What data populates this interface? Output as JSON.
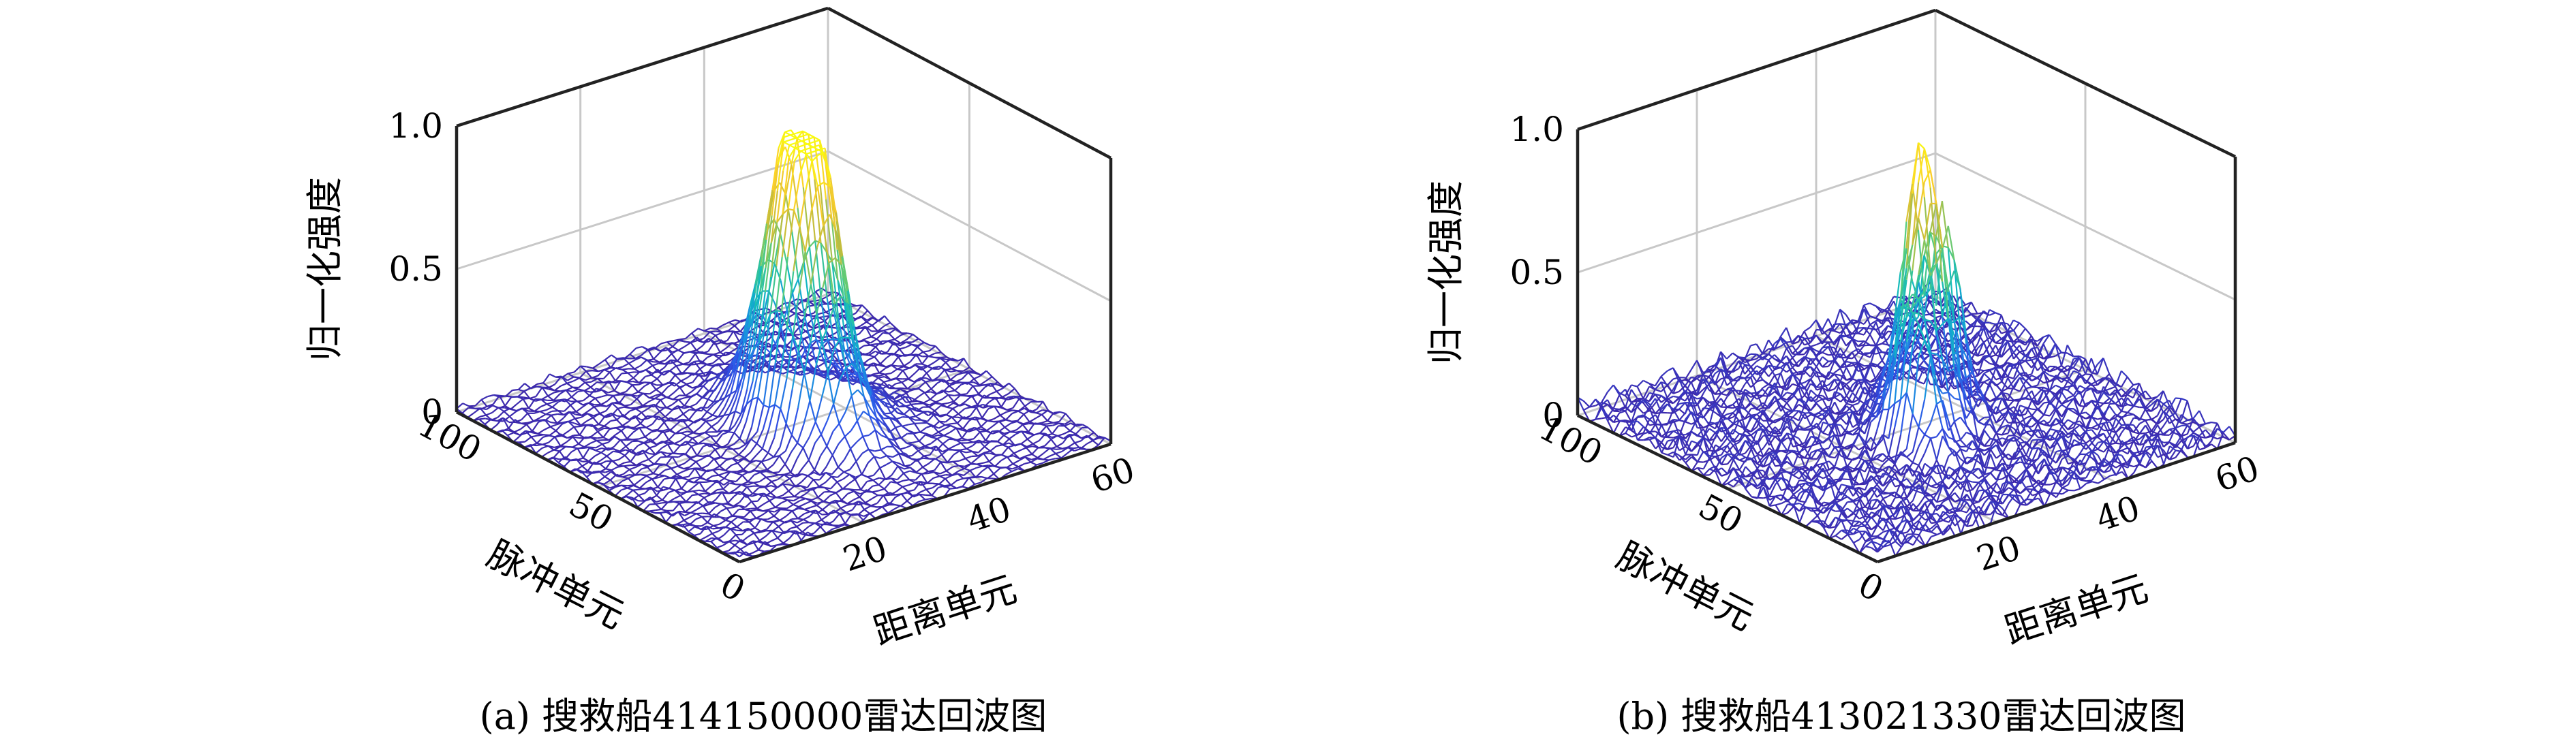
{
  "chart_data": [
    {
      "type": "surface",
      "caption": "(a) 搜救船414150000雷达回波图",
      "xlabel": "距离单元",
      "ylabel": "脉冲单元",
      "zlabel": "归一化强度",
      "xlim": [
        0,
        60
      ],
      "ylim": [
        0,
        100
      ],
      "zlim": [
        0,
        1
      ],
      "xticks": [
        "0",
        "20",
        "40",
        "60"
      ],
      "yticks": [
        "0",
        "50",
        "100"
      ],
      "zticks": [
        "0",
        "0.5",
        "1.0"
      ],
      "grid": true,
      "colormap": [
        "#3d26a8",
        "#2f54e8",
        "#1991e0",
        "#10b9c0",
        "#56cc7c",
        "#c4bd3b",
        "#fbce2b",
        "#f9fb0e"
      ],
      "peaks": [
        {
          "x": 31,
          "y": 45,
          "z": 0.95,
          "sx": 2.6,
          "sy": 11
        },
        {
          "x": 34,
          "y": 52,
          "z": 0.55,
          "sx": 2.2,
          "sy": 9
        },
        {
          "x": 27,
          "y": 42,
          "z": 0.35,
          "sx": 2.2,
          "sy": 8
        },
        {
          "x": 38,
          "y": 47,
          "z": 0.12,
          "sx": 4,
          "sy": 12
        }
      ],
      "noise": 0.02
    },
    {
      "type": "surface",
      "caption": "(b) 搜救船413021330雷达回波图",
      "xlabel": "距离单元",
      "ylabel": "脉冲单元",
      "zlabel": "归一化强度",
      "xlim": [
        0,
        60
      ],
      "ylim": [
        0,
        100
      ],
      "zlim": [
        0,
        1
      ],
      "xticks": [
        "0",
        "20",
        "40",
        "60"
      ],
      "yticks": [
        "0",
        "50",
        "100"
      ],
      "zticks": [
        "0",
        "0.5",
        "1.0"
      ],
      "grid": true,
      "colormap": [
        "#3d26a8",
        "#2f54e8",
        "#1991e0",
        "#10b9c0",
        "#56cc7c",
        "#c4bd3b",
        "#fbce2b",
        "#f9fb0e"
      ],
      "peaks": [
        {
          "x": 32,
          "y": 48,
          "z": 0.95,
          "sx": 1.6,
          "sy": 6
        },
        {
          "x": 37,
          "y": 53,
          "z": 0.7,
          "sx": 1.5,
          "sy": 6
        },
        {
          "x": 26,
          "y": 40,
          "z": 0.48,
          "sx": 1.4,
          "sy": 6
        },
        {
          "x": 29,
          "y": 44,
          "z": 0.4,
          "sx": 1.3,
          "sy": 5
        }
      ],
      "noise": 0.05
    }
  ]
}
